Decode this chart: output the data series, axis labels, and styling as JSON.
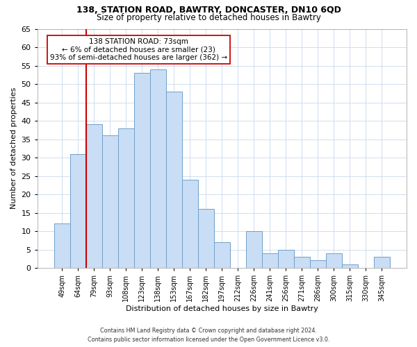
{
  "title_line1": "138, STATION ROAD, BAWTRY, DONCASTER, DN10 6QD",
  "title_line2": "Size of property relative to detached houses in Bawtry",
  "xlabel": "Distribution of detached houses by size in Bawtry",
  "ylabel": "Number of detached properties",
  "bar_labels": [
    "49sqm",
    "64sqm",
    "79sqm",
    "93sqm",
    "108sqm",
    "123sqm",
    "138sqm",
    "153sqm",
    "167sqm",
    "182sqm",
    "197sqm",
    "212sqm",
    "226sqm",
    "241sqm",
    "256sqm",
    "271sqm",
    "286sqm",
    "300sqm",
    "315sqm",
    "330sqm",
    "345sqm"
  ],
  "bar_values": [
    12,
    31,
    39,
    36,
    38,
    53,
    54,
    48,
    24,
    16,
    7,
    0,
    10,
    4,
    5,
    3,
    2,
    4,
    1,
    0,
    3
  ],
  "bar_color": "#c9ddf5",
  "bar_edgecolor": "#6fa0cc",
  "vline_color": "#cc0000",
  "vline_x": 1.5,
  "ylim": [
    0,
    65
  ],
  "yticks": [
    0,
    5,
    10,
    15,
    20,
    25,
    30,
    35,
    40,
    45,
    50,
    55,
    60,
    65
  ],
  "annotation_title": "138 STATION ROAD: 73sqm",
  "annotation_line2": "← 6% of detached houses are smaller (23)",
  "annotation_line3": "93% of semi-detached houses are larger (362) →",
  "annotation_box_color": "#ffffff",
  "annotation_box_edgecolor": "#cc0000",
  "footnote1": "Contains HM Land Registry data © Crown copyright and database right 2024.",
  "footnote2": "Contains public sector information licensed under the Open Government Licence v3.0.",
  "bg_color": "#ffffff",
  "grid_color": "#c8d8ec"
}
